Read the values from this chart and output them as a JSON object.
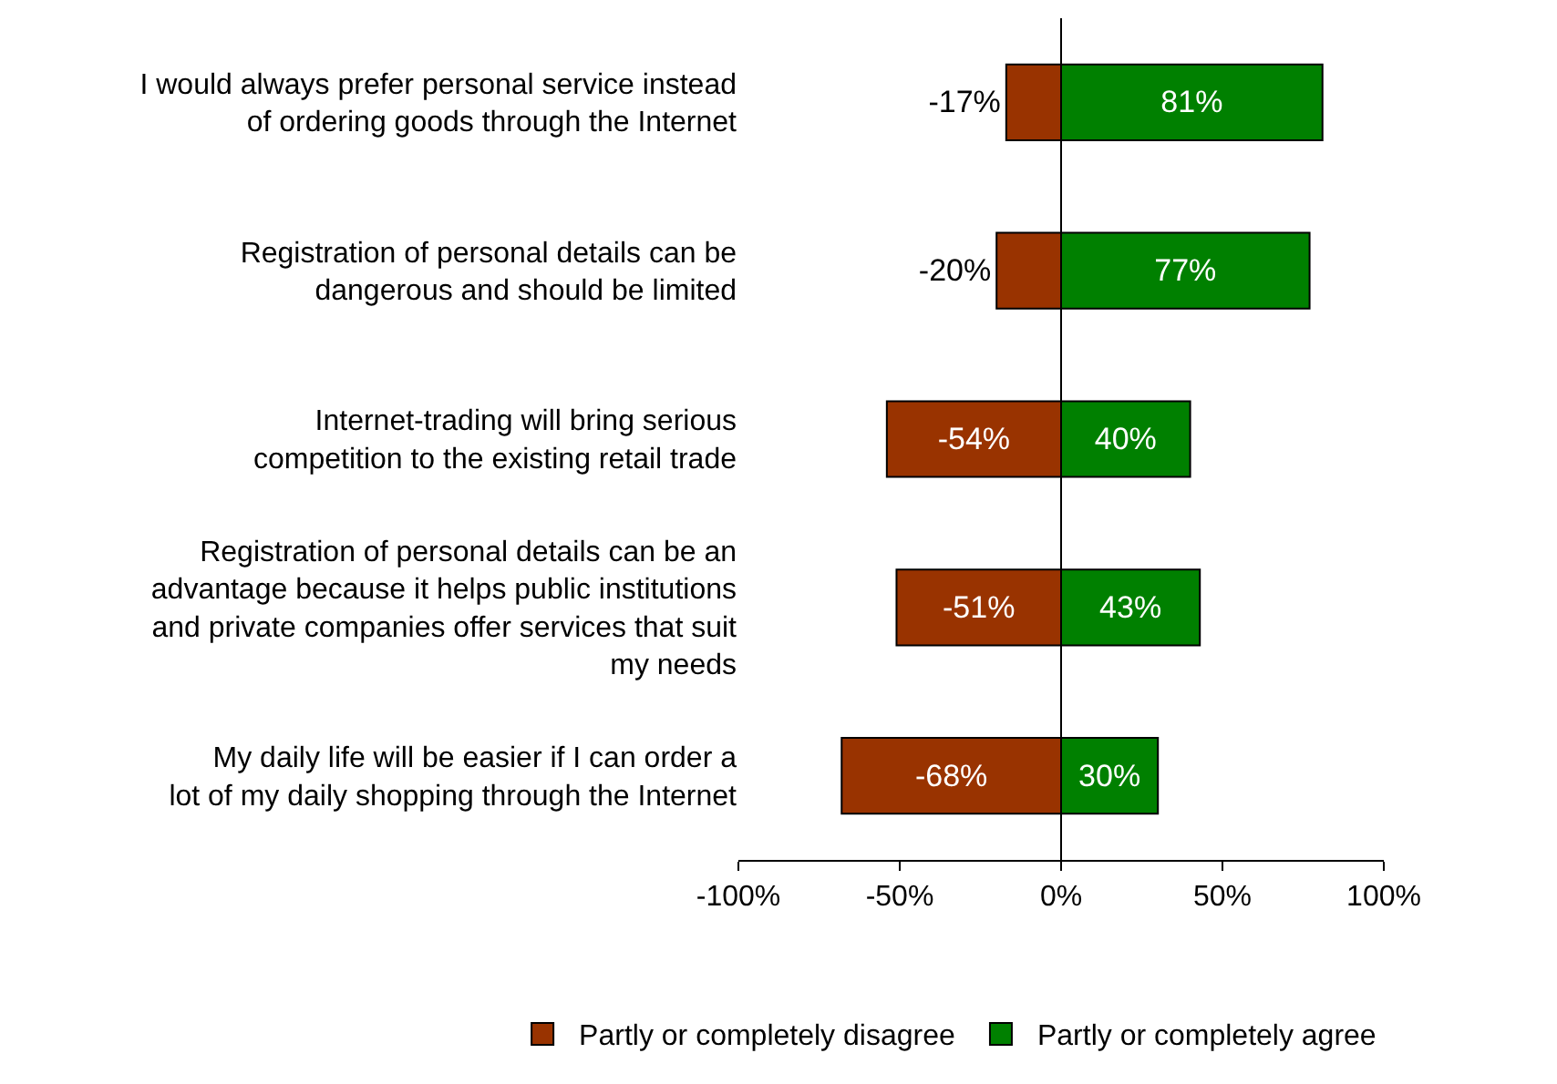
{
  "chart_data": {
    "type": "bar",
    "orientation": "horizontal",
    "stacked": true,
    "categories": [
      "I would always prefer personal service instead of ordering goods through the Internet",
      "Registration of personal details can be dangerous and should be limited",
      "Internet-trading will bring serious competition to the existing retail trade",
      "Registration of personal details can be an advantage because it helps public institutions and private companies offer services that suit my needs",
      "My daily life will be easier if I can order a lot of my daily shopping through the Internet"
    ],
    "series": [
      {
        "name": "Partly or completely disagree",
        "color": "#993300",
        "values": [
          -17,
          -20,
          -54,
          -51,
          -68
        ],
        "value_labels": [
          "-17%",
          "-20%",
          "-54%",
          "-51%",
          "-68%"
        ]
      },
      {
        "name": "Partly or completely agree",
        "color": "#008000",
        "values": [
          81,
          77,
          40,
          43,
          30
        ],
        "value_labels": [
          "81%",
          "77%",
          "40%",
          "43%",
          "30%"
        ]
      }
    ],
    "xlim": [
      -100,
      100
    ],
    "xticks": [
      {
        "value": -100,
        "label": "-100%"
      },
      {
        "value": -50,
        "label": "-50%"
      },
      {
        "value": 0,
        "label": "0%"
      },
      {
        "value": 50,
        "label": "50%"
      },
      {
        "value": 100,
        "label": "100%"
      }
    ],
    "legend": "bottom"
  }
}
